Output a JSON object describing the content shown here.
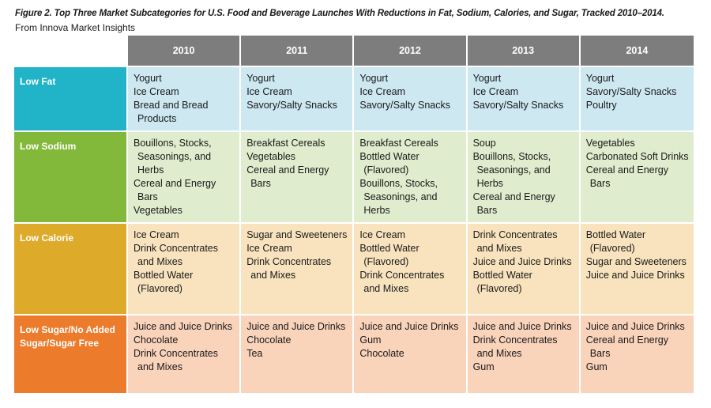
{
  "figure": {
    "title": "Figure 2. Top Three Market Subcategories for U.S. Food and Beverage Launches With Reductions in Fat, Sodium, Calories, and Sugar, Tracked 2010–2014.",
    "source": "From Innova Market Insights"
  },
  "colors": {
    "header_gray": "#7d7d7d",
    "low_fat": "#21b4c8",
    "low_sodium": "#82b93a",
    "low_calorie": "#ddaa2a",
    "low_sugar": "#ed7b2c"
  },
  "table": {
    "years": [
      "2010",
      "2011",
      "2012",
      "2013",
      "2014"
    ],
    "rows": [
      {
        "label": "Low Fat",
        "cells": [
          [
            "Yogurt",
            "Ice Cream",
            "Bread and Bread Products"
          ],
          [
            "Yogurt",
            "Ice Cream",
            "Savory/Salty Snacks"
          ],
          [
            "Yogurt",
            "Ice Cream",
            "Savory/Salty Snacks"
          ],
          [
            "Yogurt",
            "Ice Cream",
            "Savory/Salty Snacks"
          ],
          [
            "Yogurt",
            "Savory/Salty Snacks",
            "Poultry"
          ]
        ]
      },
      {
        "label": "Low Sodium",
        "cells": [
          [
            "Bouillons, Stocks, Seasonings, and Herbs",
            "Cereal and Energy Bars",
            "Vegetables"
          ],
          [
            "Breakfast Cereals",
            "Vegetables",
            "Cereal and Energy Bars"
          ],
          [
            "Breakfast Cereals",
            "Bottled Water (Flavored)",
            "Bouillons, Stocks, Seasonings, and Herbs"
          ],
          [
            "Soup",
            "Bouillons, Stocks, Seasonings, and Herbs",
            "Cereal and Energy Bars"
          ],
          [
            "Vegetables",
            "Carbonated Soft Drinks",
            "Cereal and Energy Bars"
          ]
        ]
      },
      {
        "label": "Low Calorie",
        "cells": [
          [
            "Ice Cream",
            "Drink Concentrates and Mixes",
            "Bottled Water (Flavored)"
          ],
          [
            "Sugar and Sweeteners",
            "Ice Cream",
            "Drink Concentrates and Mixes"
          ],
          [
            "Ice Cream",
            "Bottled Water (Flavored)",
            "Drink Concentrates and Mixes"
          ],
          [
            "Drink Concentrates and Mixes",
            "Juice and Juice Drinks",
            "Bottled Water (Flavored)"
          ],
          [
            "Bottled Water (Flavored)",
            "Sugar and Sweeteners",
            "Juice and Juice Drinks"
          ]
        ]
      },
      {
        "label": "Low Sugar/No Added Sugar/Sugar Free",
        "cells": [
          [
            "Juice and Juice Drinks",
            "Chocolate",
            "Drink Concentrates and Mixes"
          ],
          [
            "Juice and Juice Drinks",
            "Chocolate",
            "Tea"
          ],
          [
            "Juice and Juice Drinks",
            "Gum",
            "Chocolate"
          ],
          [
            "Juice and Juice Drinks",
            "Drink Concentrates and Mixes",
            "Gum"
          ],
          [
            "Juice and Juice Drinks",
            "Cereal and Energy Bars",
            "Gum"
          ]
        ]
      }
    ]
  }
}
